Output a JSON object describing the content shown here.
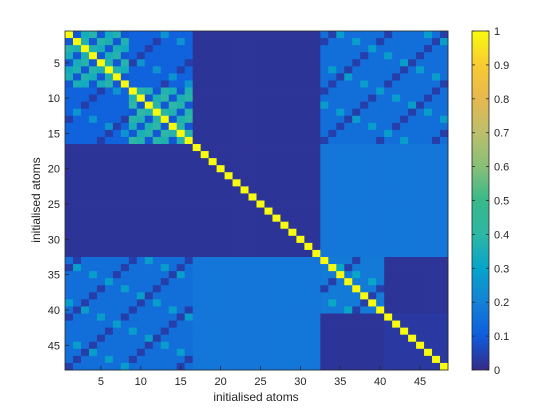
{
  "chart_data": {
    "type": "heatmap",
    "title": "",
    "xlabel": "initialised atoms",
    "ylabel": "initialised atoms",
    "n": 48,
    "xlim": [
      0.5,
      48.5
    ],
    "ylim": [
      0.5,
      48.5
    ],
    "y_direction": "top-to-bottom",
    "x_ticks": [
      5,
      10,
      15,
      20,
      25,
      30,
      35,
      40,
      45
    ],
    "y_ticks": [
      5,
      10,
      15,
      20,
      25,
      30,
      35,
      40,
      45
    ],
    "colormap": "parula",
    "clim": [
      0,
      1
    ],
    "colorbar_ticks": [
      "0",
      "0.1",
      "0.2",
      "0.3",
      "0.4",
      "0.5",
      "0.6",
      "0.7",
      "0.8",
      "0.9",
      "1"
    ],
    "diagonal_value": 1,
    "base_value": 0.02,
    "blocks": [
      {
        "rows": [
          1,
          8
        ],
        "cols": [
          1,
          8
        ],
        "value": 0.33,
        "pattern": "checker"
      },
      {
        "rows": [
          9,
          16
        ],
        "cols": [
          9,
          16
        ],
        "value": 0.35,
        "pattern": "checker"
      },
      {
        "rows": [
          1,
          8
        ],
        "cols": [
          9,
          16
        ],
        "value": 0.12,
        "pattern": "sparse"
      },
      {
        "rows": [
          9,
          16
        ],
        "cols": [
          1,
          8
        ],
        "value": 0.12,
        "pattern": "sparse"
      },
      {
        "rows": [
          33,
          40
        ],
        "cols": [
          33,
          40
        ],
        "value": 0.18,
        "pattern": "sparse"
      },
      {
        "rows": [
          41,
          48
        ],
        "cols": [
          41,
          48
        ],
        "value": 0.03,
        "pattern": "uniform"
      },
      {
        "rows": [
          1,
          16
        ],
        "cols": [
          33,
          48
        ],
        "value": 0.15,
        "pattern": "sparse"
      },
      {
        "rows": [
          33,
          48
        ],
        "cols": [
          1,
          16
        ],
        "value": 0.15,
        "pattern": "sparse"
      },
      {
        "rows": [
          17,
          32
        ],
        "cols": [
          33,
          48
        ],
        "value": 0.17,
        "pattern": "uniform"
      },
      {
        "rows": [
          33,
          48
        ],
        "cols": [
          17,
          32
        ],
        "value": 0.17,
        "pattern": "uniform"
      }
    ]
  }
}
